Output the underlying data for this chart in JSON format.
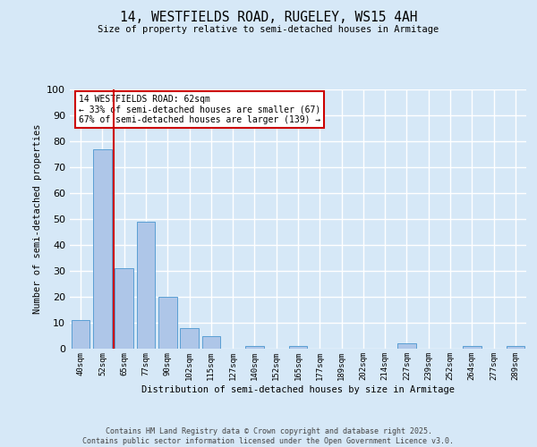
{
  "title_line1": "14, WESTFIELDS ROAD, RUGELEY, WS15 4AH",
  "title_line2": "Size of property relative to semi-detached houses in Armitage",
  "xlabel": "Distribution of semi-detached houses by size in Armitage",
  "ylabel": "Number of semi-detached properties",
  "categories": [
    "40sqm",
    "52sqm",
    "65sqm",
    "77sqm",
    "90sqm",
    "102sqm",
    "115sqm",
    "127sqm",
    "140sqm",
    "152sqm",
    "165sqm",
    "177sqm",
    "189sqm",
    "202sqm",
    "214sqm",
    "227sqm",
    "239sqm",
    "252sqm",
    "264sqm",
    "277sqm",
    "289sqm"
  ],
  "values": [
    11,
    77,
    31,
    49,
    20,
    8,
    5,
    0,
    1,
    0,
    1,
    0,
    0,
    0,
    0,
    2,
    0,
    0,
    1,
    0,
    1
  ],
  "bar_color": "#aec6e8",
  "bar_edge_color": "#5a9fd4",
  "ylim": [
    0,
    100
  ],
  "yticks": [
    0,
    10,
    20,
    30,
    40,
    50,
    60,
    70,
    80,
    90,
    100
  ],
  "background_color": "#d6e8f7",
  "plot_bg_color": "#d6e8f7",
  "grid_color": "#ffffff",
  "annotation_box_text": "14 WESTFIELDS ROAD: 62sqm\n← 33% of semi-detached houses are smaller (67)\n67% of semi-detached houses are larger (139) →",
  "annotation_box_color": "#cc0000",
  "property_line_x": 1.5,
  "footer_line1": "Contains HM Land Registry data © Crown copyright and database right 2025.",
  "footer_line2": "Contains public sector information licensed under the Open Government Licence v3.0."
}
